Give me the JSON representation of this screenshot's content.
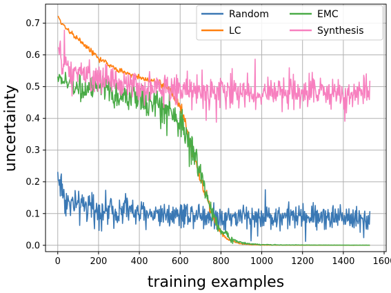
{
  "chart_data": {
    "type": "line",
    "title": "",
    "xlabel": "training examples",
    "ylabel": "uncertainty",
    "xlim": [
      -60,
      1610
    ],
    "ylim": [
      -0.02,
      0.76
    ],
    "xticks": [
      0,
      200,
      400,
      600,
      800,
      1000,
      1200,
      1400,
      1600
    ],
    "yticks": [
      0.0,
      0.1,
      0.2,
      0.3,
      0.4,
      0.5,
      0.6,
      0.7
    ],
    "xtick_labels": [
      "0",
      "200",
      "400",
      "600",
      "800",
      "1000",
      "1200",
      "1400",
      "1600"
    ],
    "ytick_labels": [
      "0.0",
      "0.1",
      "0.2",
      "0.3",
      "0.4",
      "0.5",
      "0.6",
      "0.7"
    ],
    "grid": true,
    "legend": {
      "placement": "top-right",
      "columns": 2
    },
    "series": [
      {
        "name": "Random",
        "color": "#3a78b4",
        "x": [
          0,
          20,
          40,
          60,
          80,
          100,
          150,
          200,
          250,
          300,
          350,
          400,
          450,
          500,
          550,
          600,
          650,
          700,
          750,
          800,
          850,
          900,
          950,
          1000,
          1050,
          1100,
          1150,
          1200,
          1250,
          1300,
          1350,
          1400,
          1450,
          1500,
          1530
        ],
        "center": [
          0.22,
          0.18,
          0.14,
          0.13,
          0.13,
          0.12,
          0.12,
          0.11,
          0.11,
          0.11,
          0.11,
          0.1,
          0.1,
          0.1,
          0.1,
          0.1,
          0.1,
          0.1,
          0.09,
          0.09,
          0.09,
          0.09,
          0.09,
          0.09,
          0.09,
          0.09,
          0.09,
          0.09,
          0.09,
          0.09,
          0.09,
          0.09,
          0.09,
          0.08,
          0.08
        ],
        "spread": [
          0.1,
          0.09,
          0.08,
          0.07,
          0.07,
          0.07,
          0.07,
          0.07,
          0.07,
          0.07,
          0.07,
          0.06,
          0.06,
          0.06,
          0.06,
          0.06,
          0.06,
          0.06,
          0.06,
          0.06,
          0.06,
          0.06,
          0.06,
          0.06,
          0.06,
          0.06,
          0.06,
          0.06,
          0.06,
          0.06,
          0.06,
          0.06,
          0.06,
          0.05,
          0.05
        ]
      },
      {
        "name": "LC",
        "color": "#ff7f0e",
        "x": [
          0,
          20,
          50,
          100,
          150,
          200,
          250,
          300,
          350,
          400,
          450,
          500,
          550,
          600,
          620,
          650,
          680,
          700,
          720,
          740,
          760,
          780,
          800,
          820,
          850,
          880,
          900,
          950,
          1000,
          1100,
          1200,
          1300,
          1400,
          1500,
          1530
        ],
        "center": [
          0.72,
          0.7,
          0.68,
          0.65,
          0.62,
          0.59,
          0.57,
          0.55,
          0.54,
          0.53,
          0.52,
          0.51,
          0.49,
          0.44,
          0.4,
          0.32,
          0.25,
          0.21,
          0.17,
          0.13,
          0.09,
          0.06,
          0.04,
          0.025,
          0.015,
          0.008,
          0.004,
          0.002,
          0.001,
          0.0005,
          0.0003,
          0.0002,
          0.0001,
          0.0001,
          0.0001
        ],
        "spread": [
          0.01,
          0.01,
          0.012,
          0.012,
          0.012,
          0.012,
          0.012,
          0.012,
          0.012,
          0.012,
          0.012,
          0.015,
          0.02,
          0.03,
          0.03,
          0.03,
          0.03,
          0.03,
          0.03,
          0.025,
          0.02,
          0.015,
          0.012,
          0.008,
          0.005,
          0.003,
          0.002,
          0.001,
          0.001,
          0.0005,
          0.0003,
          0.0002,
          0.0001,
          0.0001,
          0.0001
        ]
      },
      {
        "name": "EMC",
        "color": "#4aab47",
        "x": [
          0,
          20,
          50,
          100,
          150,
          200,
          250,
          300,
          350,
          400,
          450,
          500,
          550,
          600,
          620,
          650,
          680,
          700,
          720,
          740,
          760,
          780,
          800,
          820,
          850,
          880,
          900,
          950,
          1000,
          1100,
          1200,
          1300,
          1400,
          1500,
          1530
        ],
        "center": [
          0.53,
          0.52,
          0.51,
          0.5,
          0.49,
          0.49,
          0.48,
          0.47,
          0.47,
          0.46,
          0.45,
          0.44,
          0.42,
          0.39,
          0.36,
          0.31,
          0.27,
          0.23,
          0.18,
          0.14,
          0.1,
          0.07,
          0.05,
          0.035,
          0.02,
          0.012,
          0.008,
          0.004,
          0.002,
          0.001,
          0.0008,
          0.0006,
          0.0005,
          0.0004,
          0.0004
        ],
        "spread": [
          0.03,
          0.04,
          0.05,
          0.05,
          0.06,
          0.06,
          0.06,
          0.06,
          0.07,
          0.07,
          0.07,
          0.07,
          0.07,
          0.07,
          0.07,
          0.06,
          0.06,
          0.06,
          0.06,
          0.05,
          0.04,
          0.03,
          0.025,
          0.02,
          0.012,
          0.008,
          0.005,
          0.003,
          0.002,
          0.001,
          0.0005,
          0.0004,
          0.0003,
          0.0002,
          0.0002
        ]
      },
      {
        "name": "Synthesis",
        "color": "#f780bf",
        "x": [
          0,
          20,
          50,
          100,
          150,
          200,
          250,
          300,
          350,
          400,
          450,
          500,
          550,
          600,
          650,
          700,
          750,
          800,
          850,
          900,
          950,
          1000,
          1050,
          1100,
          1150,
          1200,
          1250,
          1300,
          1350,
          1400,
          1450,
          1500,
          1530
        ],
        "center": [
          0.62,
          0.58,
          0.55,
          0.54,
          0.53,
          0.52,
          0.52,
          0.51,
          0.51,
          0.5,
          0.5,
          0.5,
          0.49,
          0.49,
          0.49,
          0.49,
          0.48,
          0.48,
          0.48,
          0.48,
          0.48,
          0.48,
          0.48,
          0.48,
          0.48,
          0.48,
          0.48,
          0.48,
          0.48,
          0.48,
          0.48,
          0.48,
          0.47
        ],
        "spread": [
          0.07,
          0.07,
          0.06,
          0.06,
          0.07,
          0.07,
          0.07,
          0.07,
          0.07,
          0.07,
          0.07,
          0.07,
          0.07,
          0.07,
          0.07,
          0.07,
          0.07,
          0.07,
          0.07,
          0.07,
          0.07,
          0.07,
          0.07,
          0.07,
          0.07,
          0.07,
          0.07,
          0.07,
          0.07,
          0.07,
          0.07,
          0.07,
          0.07
        ]
      }
    ]
  }
}
